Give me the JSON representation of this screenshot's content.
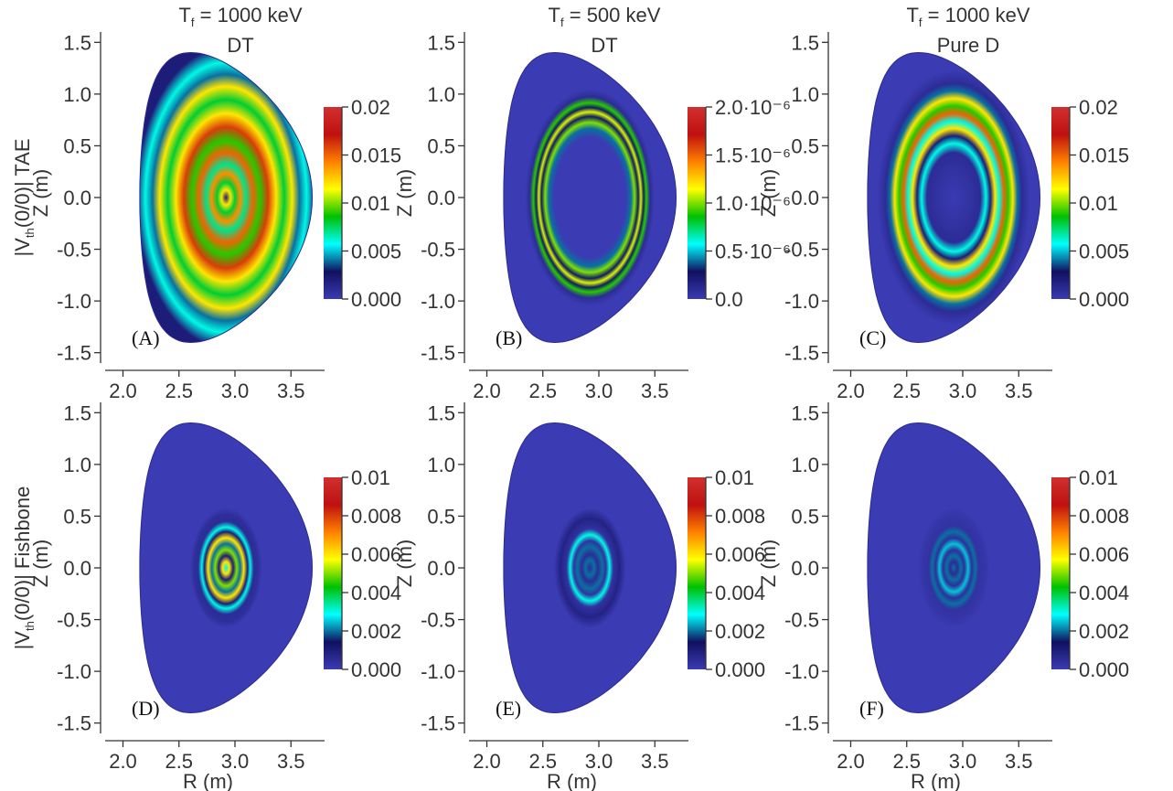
{
  "chart_data": {
    "type": "heatmap",
    "column_titles": [
      {
        "line1_main": "T",
        "line1_sub": "f",
        "line1_rest": " = 1000 keV",
        "line2": "DT"
      },
      {
        "line1_main": "T",
        "line1_sub": "f",
        "line1_rest": " = 500 keV",
        "line2": "DT"
      },
      {
        "line1_main": "T",
        "line1_sub": "f",
        "line1_rest": " = 1000 keV",
        "line2": "Pure D"
      }
    ],
    "row_labels": [
      {
        "prefix": "|V",
        "sub": "th",
        "suffix": "(0/0)|  TAE"
      },
      {
        "prefix": "|V",
        "sub": "th",
        "suffix": "(0/0)|  Fishbone"
      }
    ],
    "xlabel": "R (m)",
    "ylabel": "Z (m)",
    "x_ticks": [
      "2.0",
      "2.5",
      "3.0",
      "3.5"
    ],
    "y_ticks": [
      "1.5",
      "1.0",
      "0.5",
      "0.0",
      "-0.5",
      "-1.0",
      "-1.5"
    ],
    "xlim": [
      1.8,
      3.8
    ],
    "ylim": [
      -1.6,
      1.6
    ],
    "colormap": [
      "#3b3bb3",
      "#101060",
      "#00ffff",
      "#00c000",
      "#ffff00",
      "#ff8000",
      "#c01010",
      "#d03030"
    ],
    "panels": [
      {
        "id": "A",
        "label": "(A)",
        "row": 0,
        "col": 0,
        "vmax": 0.02,
        "colorbar_ticks": [
          "0.02",
          "0.015",
          "0.01",
          "0.005",
          "0.000"
        ],
        "pattern": [
          {
            "r": 0.0,
            "v": 0.002
          },
          {
            "r": 0.05,
            "v": 0.012
          },
          {
            "r": 0.1,
            "v": 0.008
          },
          {
            "r": 0.16,
            "v": 0.014
          },
          {
            "r": 0.22,
            "v": 0.007
          },
          {
            "r": 0.3,
            "v": 0.015
          },
          {
            "r": 0.38,
            "v": 0.009
          },
          {
            "r": 0.47,
            "v": 0.016
          },
          {
            "r": 0.56,
            "v": 0.012
          },
          {
            "r": 0.65,
            "v": 0.008
          },
          {
            "r": 0.74,
            "v": 0.012
          },
          {
            "r": 0.82,
            "v": 0.004
          },
          {
            "r": 0.9,
            "v": 0.006
          },
          {
            "r": 1.0,
            "v": 0.002
          }
        ]
      },
      {
        "id": "B",
        "label": "(B)",
        "row": 0,
        "col": 1,
        "vmax": 2e-06,
        "colorbar_ticks": [
          "2.0·10⁻⁶",
          "1.5·10⁻⁶",
          "1.0·10⁻⁶",
          "0.5·10⁻⁶",
          "0.0"
        ],
        "pattern": [
          {
            "r": 0.0,
            "v": 0.0
          },
          {
            "r": 0.4,
            "v": 0.0
          },
          {
            "r": 0.46,
            "v": 4e-07
          },
          {
            "r": 0.5,
            "v": 1e-06
          },
          {
            "r": 0.54,
            "v": 3e-07
          },
          {
            "r": 0.57,
            "v": 1.1e-06
          },
          {
            "r": 0.6,
            "v": 3e-07
          },
          {
            "r": 0.63,
            "v": 9e-07
          },
          {
            "r": 0.67,
            "v": 1e-07
          },
          {
            "r": 0.72,
            "v": 0.0
          },
          {
            "r": 1.0,
            "v": 0.0
          }
        ]
      },
      {
        "id": "C",
        "label": "(C)",
        "row": 0,
        "col": 2,
        "vmax": 0.02,
        "colorbar_ticks": [
          "0.02",
          "0.015",
          "0.01",
          "0.005",
          "0.000"
        ],
        "pattern": [
          {
            "r": 0.0,
            "v": 0.0
          },
          {
            "r": 0.3,
            "v": 0.001
          },
          {
            "r": 0.36,
            "v": 0.006
          },
          {
            "r": 0.41,
            "v": 0.002
          },
          {
            "r": 0.46,
            "v": 0.012
          },
          {
            "r": 0.51,
            "v": 0.006
          },
          {
            "r": 0.56,
            "v": 0.015
          },
          {
            "r": 0.61,
            "v": 0.009
          },
          {
            "r": 0.66,
            "v": 0.012
          },
          {
            "r": 0.71,
            "v": 0.004
          },
          {
            "r": 0.76,
            "v": 0.001
          },
          {
            "r": 0.85,
            "v": 0.0
          },
          {
            "r": 1.0,
            "v": 0.0
          }
        ]
      },
      {
        "id": "D",
        "label": "(D)",
        "row": 1,
        "col": 0,
        "vmax": 0.01,
        "colorbar_ticks": [
          "0.01",
          "0.008",
          "0.006",
          "0.004",
          "0.002",
          "0.000"
        ],
        "pattern": [
          {
            "r": 0.0,
            "v": 0.003
          },
          {
            "r": 0.04,
            "v": 0.006
          },
          {
            "r": 0.08,
            "v": 0.001
          },
          {
            "r": 0.12,
            "v": 0.005
          },
          {
            "r": 0.16,
            "v": 0.002
          },
          {
            "r": 0.2,
            "v": 0.006
          },
          {
            "r": 0.24,
            "v": 0.001
          },
          {
            "r": 0.27,
            "v": 0.003
          },
          {
            "r": 0.31,
            "v": 0.0005
          },
          {
            "r": 0.36,
            "v": 0.0004
          },
          {
            "r": 0.4,
            "v": 0.0
          },
          {
            "r": 1.0,
            "v": 0.0
          }
        ]
      },
      {
        "id": "E",
        "label": "(E)",
        "row": 1,
        "col": 1,
        "vmax": 0.01,
        "colorbar_ticks": [
          "0.01",
          "0.008",
          "0.006",
          "0.004",
          "0.002",
          "0.000"
        ],
        "pattern": [
          {
            "r": 0.0,
            "v": 0.0005
          },
          {
            "r": 0.05,
            "v": 0.002
          },
          {
            "r": 0.09,
            "v": 0.0005
          },
          {
            "r": 0.14,
            "v": 0.002
          },
          {
            "r": 0.18,
            "v": 0.0003
          },
          {
            "r": 0.22,
            "v": 0.003
          },
          {
            "r": 0.26,
            "v": 0.0003
          },
          {
            "r": 0.33,
            "v": 0.0008
          },
          {
            "r": 0.4,
            "v": 0.0
          },
          {
            "r": 1.0,
            "v": 0.0
          }
        ]
      },
      {
        "id": "F",
        "label": "(F)",
        "row": 1,
        "col": 2,
        "vmax": 0.01,
        "colorbar_ticks": [
          "0.01",
          "0.008",
          "0.006",
          "0.004",
          "0.002",
          "0.000"
        ],
        "pattern": [
          {
            "r": 0.0,
            "v": 0.002
          },
          {
            "r": 0.04,
            "v": 0.0005
          },
          {
            "r": 0.08,
            "v": 0.002
          },
          {
            "r": 0.12,
            "v": 0.0004
          },
          {
            "r": 0.16,
            "v": 0.0025
          },
          {
            "r": 0.2,
            "v": 0.0004
          },
          {
            "r": 0.24,
            "v": 0.002
          },
          {
            "r": 0.28,
            "v": 0.0003
          },
          {
            "r": 0.34,
            "v": 0.0002
          },
          {
            "r": 0.4,
            "v": 0.0
          },
          {
            "r": 1.0,
            "v": 0.0
          }
        ]
      }
    ]
  }
}
